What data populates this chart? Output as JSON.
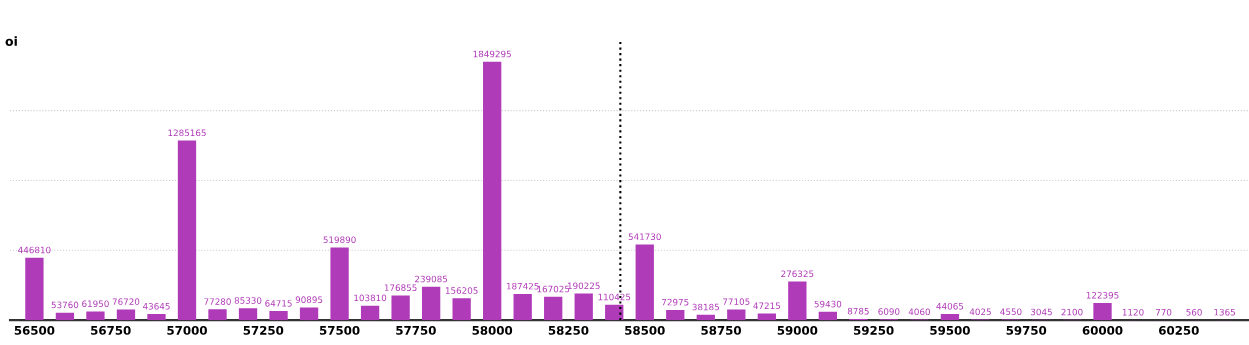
{
  "chart_data": {
    "type": "bar",
    "ylabel": "oi",
    "x": [
      56500,
      56600,
      56700,
      56800,
      56900,
      57000,
      57100,
      57200,
      57300,
      57400,
      57500,
      57600,
      57700,
      57800,
      57900,
      58000,
      58100,
      58200,
      58300,
      58400,
      58500,
      58600,
      58700,
      58800,
      58900,
      59000,
      59100,
      59200,
      59300,
      59400,
      59500,
      59600,
      59700,
      59800,
      59900,
      60000,
      60100,
      60200,
      60300,
      60400
    ],
    "values": [
      446810,
      53760,
      61950,
      76720,
      43645,
      1285165,
      77280,
      85330,
      64715,
      90895,
      519890,
      103810,
      176855,
      239085,
      156205,
      1849295,
      187425,
      167025,
      190225,
      110425,
      541730,
      72975,
      38185,
      77105,
      47215,
      276325,
      59430,
      8785,
      6090,
      4060,
      44065,
      4025,
      4550,
      3045,
      2100,
      122395,
      1120,
      770,
      560,
      1365
    ],
    "color": "#b03bb8",
    "data_labels": true,
    "xlim": [
      56420,
      60480
    ],
    "xticks": [
      56500,
      56750,
      57000,
      57250,
      57500,
      57750,
      58000,
      58250,
      58500,
      58750,
      59000,
      59250,
      59500,
      59750,
      60000,
      60250
    ],
    "ylim": [
      0,
      2000000
    ],
    "yticks": [
      {
        "value": 500000,
        "label": null
      },
      {
        "value": 1000000,
        "label": null
      },
      {
        "value": 1500000,
        "label": null
      }
    ],
    "tick_labels": "x",
    "grid": "y",
    "ref_lines": [
      {
        "axis": "x",
        "value": 58420,
        "color": "#000000",
        "line_style": "dotted"
      }
    ]
  }
}
